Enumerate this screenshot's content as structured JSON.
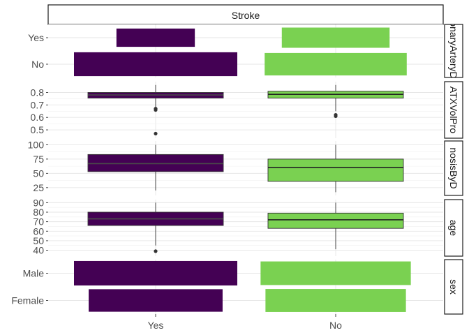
{
  "chart_data": {
    "type": "faceted-bar-and-boxplot",
    "top_strip": "Stroke",
    "x_categories": [
      "Yes",
      "No"
    ],
    "fill_colors": {
      "Yes": "#440154",
      "No": "#7ad151"
    },
    "panels": [
      {
        "strip": "CoronaryArteryDisease",
        "strip_visible": "onaryArteryDi",
        "kind": "bar",
        "y_categories": [
          "No",
          "Yes"
        ],
        "bars": {
          "Yes": {
            "Yes": 0.48,
            "No": 1.0
          },
          "No": {
            "Yes": 0.66,
            "No": 0.87
          }
        }
      },
      {
        "strip": "MRI_TOFMRA_LEFT_ATXVolProp",
        "strip_visible": "ATXVolPro",
        "kind": "box",
        "ylim": [
          0.45,
          0.87
        ],
        "ticks": [
          "0.5",
          "0.6",
          "0.7",
          "0.8"
        ],
        "tick_values": [
          0.5,
          0.6,
          0.7,
          0.8
        ],
        "boxes": {
          "Yes": {
            "min": 0.68,
            "q1": 0.755,
            "median": 0.78,
            "q3": 0.8,
            "max": 0.86,
            "outliers": [
              0.67,
              0.66,
              0.47
            ]
          },
          "No": {
            "min": 0.65,
            "q1": 0.755,
            "median": 0.785,
            "q3": 0.81,
            "max": 0.86,
            "outliers": [
              0.62,
              0.61
            ]
          }
        }
      },
      {
        "strip": "DiagnosisByDoctor",
        "strip_visible": "nosisByD",
        "kind": "box",
        "ylim": [
          15,
          103
        ],
        "ticks": [
          "25",
          "50",
          "75",
          "100"
        ],
        "tick_values": [
          25,
          50,
          75,
          100
        ],
        "boxes": {
          "Yes": {
            "min": 20,
            "q1": 53,
            "median": 67,
            "q3": 83,
            "max": 100,
            "outliers": []
          },
          "No": {
            "min": 17,
            "q1": 36,
            "median": 60,
            "q3": 75,
            "max": 100,
            "outliers": []
          }
        }
      },
      {
        "strip": "age",
        "strip_visible": "age",
        "kind": "box",
        "ylim": [
          36,
          91
        ],
        "ticks": [
          "40",
          "50",
          "60",
          "70",
          "80",
          "90"
        ],
        "tick_values": [
          40,
          50,
          60,
          70,
          80,
          90
        ],
        "boxes": {
          "Yes": {
            "min": 45,
            "q1": 66,
            "median": 73,
            "q3": 80,
            "max": 90,
            "outliers": [
              39
            ]
          },
          "No": {
            "min": 41,
            "q1": 63,
            "median": 72,
            "q3": 79,
            "max": 90,
            "outliers": []
          }
        }
      },
      {
        "strip": "sex",
        "strip_visible": "sex",
        "kind": "bar",
        "y_categories": [
          "Female",
          "Male"
        ],
        "bars": {
          "Yes": {
            "Male": 1.0,
            "Female": 0.82
          },
          "No": {
            "Male": 0.92,
            "Female": 0.86
          }
        }
      }
    ]
  }
}
